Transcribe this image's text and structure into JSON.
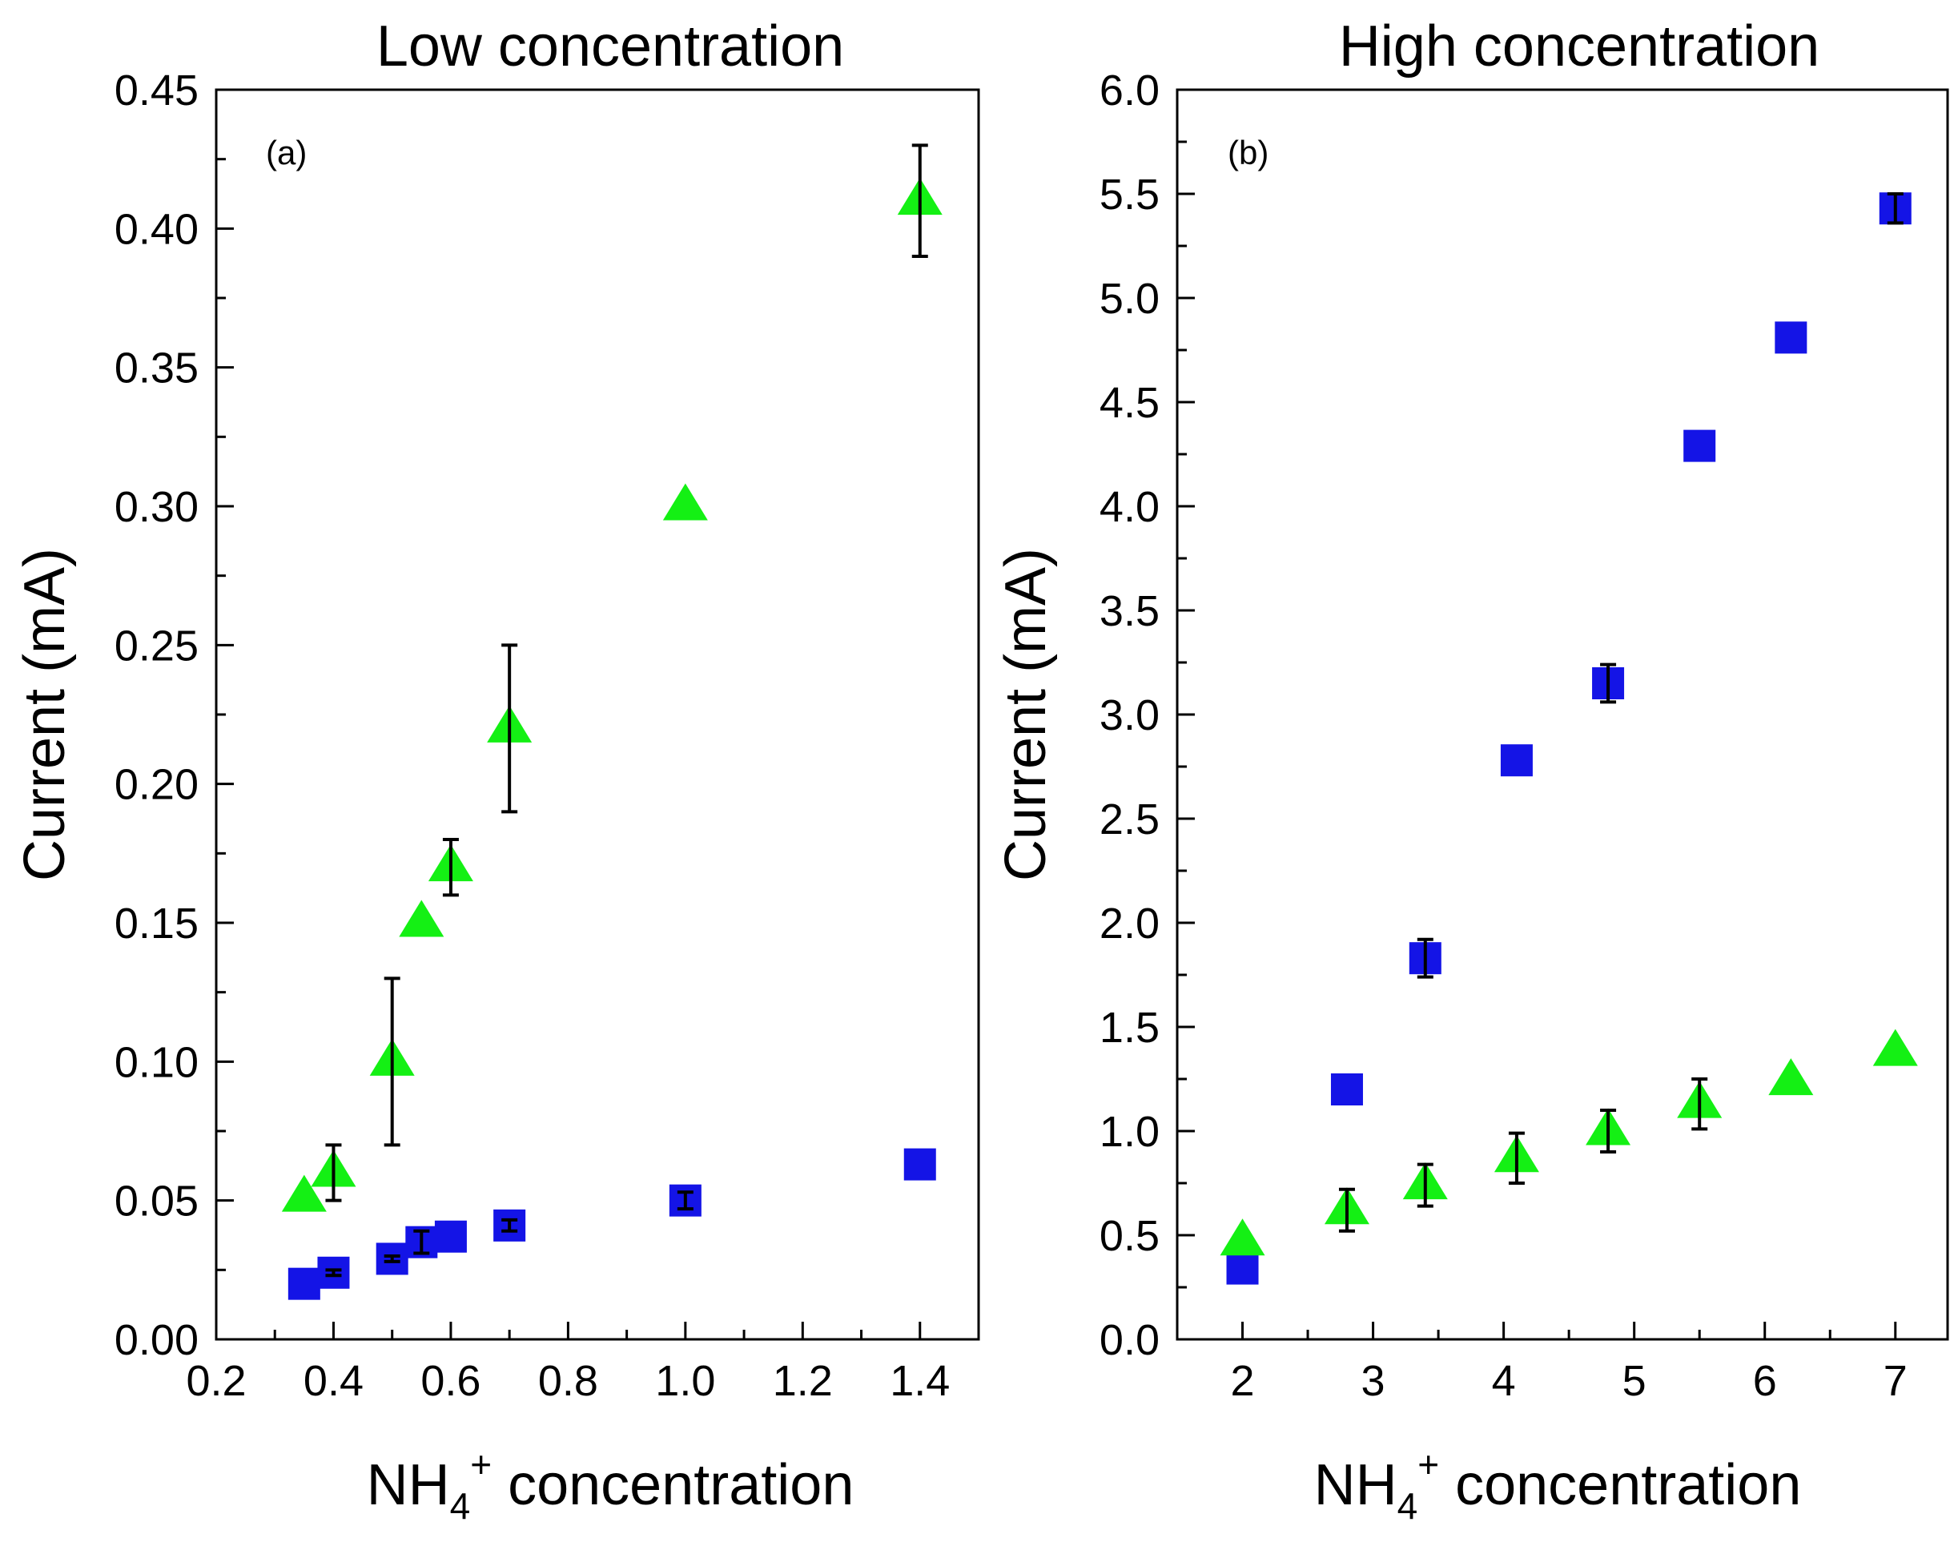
{
  "colors": {
    "square": "#1414e6",
    "triangle": "#14f014",
    "error_bar": "#000000",
    "frame": "#000000"
  },
  "chart_data": [
    {
      "type": "scatter",
      "title": "Low concentration",
      "panel_label": "(a)",
      "xlabel": "NH",
      "xlabel_sub": "4",
      "xlabel_sup": "+",
      "xlabel_rest": " concentration",
      "ylabel": "Current (mA)",
      "xlim": [
        0.2,
        1.5
      ],
      "ylim": [
        0.0,
        0.45
      ],
      "xticks": [
        "0.2",
        "0.4",
        "0.6",
        "0.8",
        "1.0",
        "1.2",
        "1.4"
      ],
      "yticks": [
        "0.00",
        "0.05",
        "0.10",
        "0.15",
        "0.20",
        "0.25",
        "0.30",
        "0.35",
        "0.40",
        "0.45"
      ],
      "series": [
        {
          "name": "triangle",
          "marker": "triangle",
          "x": [
            0.35,
            0.4,
            0.5,
            0.55,
            0.6,
            0.7,
            1.0,
            1.4
          ],
          "y": [
            0.051,
            0.06,
            0.1,
            0.15,
            0.17,
            0.22,
            0.3,
            0.41
          ],
          "yerr": [
            0.0,
            0.01,
            0.03,
            0.0,
            0.01,
            0.03,
            0.0,
            0.02
          ]
        },
        {
          "name": "square",
          "marker": "square",
          "x": [
            0.35,
            0.4,
            0.5,
            0.55,
            0.6,
            0.7,
            1.0,
            1.4
          ],
          "y": [
            0.02,
            0.024,
            0.029,
            0.035,
            0.037,
            0.041,
            0.05,
            0.063
          ],
          "yerr": [
            0.0,
            0.001,
            0.001,
            0.004,
            0.0,
            0.002,
            0.003,
            0.0
          ]
        }
      ]
    },
    {
      "type": "scatter",
      "title": "High concentration",
      "panel_label": "(b)",
      "xlabel": "NH",
      "xlabel_sub": "4",
      "xlabel_sup": "+",
      "xlabel_rest": " concentration",
      "ylabel": "Current (mA)",
      "xlim": [
        1.5,
        7.4
      ],
      "ylim": [
        0.0,
        6.0
      ],
      "xticks": [
        "2",
        "3",
        "4",
        "5",
        "6",
        "7"
      ],
      "yticks": [
        "0.0",
        "0.5",
        "1.0",
        "1.5",
        "2.0",
        "2.5",
        "3.0",
        "3.5",
        "4.0",
        "4.5",
        "5.0",
        "5.5",
        "6.0"
      ],
      "series": [
        {
          "name": "square",
          "marker": "square",
          "x": [
            2.0,
            2.8,
            3.4,
            4.1,
            4.8,
            5.5,
            6.2,
            7.0
          ],
          "y": [
            0.34,
            1.2,
            1.83,
            2.78,
            3.15,
            4.29,
            4.81,
            5.43
          ],
          "yerr": [
            0.0,
            0.0,
            0.09,
            0.0,
            0.09,
            0.0,
            0.0,
            0.07
          ]
        },
        {
          "name": "triangle",
          "marker": "triangle",
          "x": [
            2.0,
            2.8,
            3.4,
            4.1,
            4.8,
            5.5,
            6.2,
            7.0
          ],
          "y": [
            0.47,
            0.62,
            0.74,
            0.87,
            1.0,
            1.13,
            1.24,
            1.38
          ],
          "yerr": [
            0.0,
            0.1,
            0.1,
            0.12,
            0.1,
            0.12,
            0.0,
            0.0
          ]
        }
      ]
    }
  ]
}
